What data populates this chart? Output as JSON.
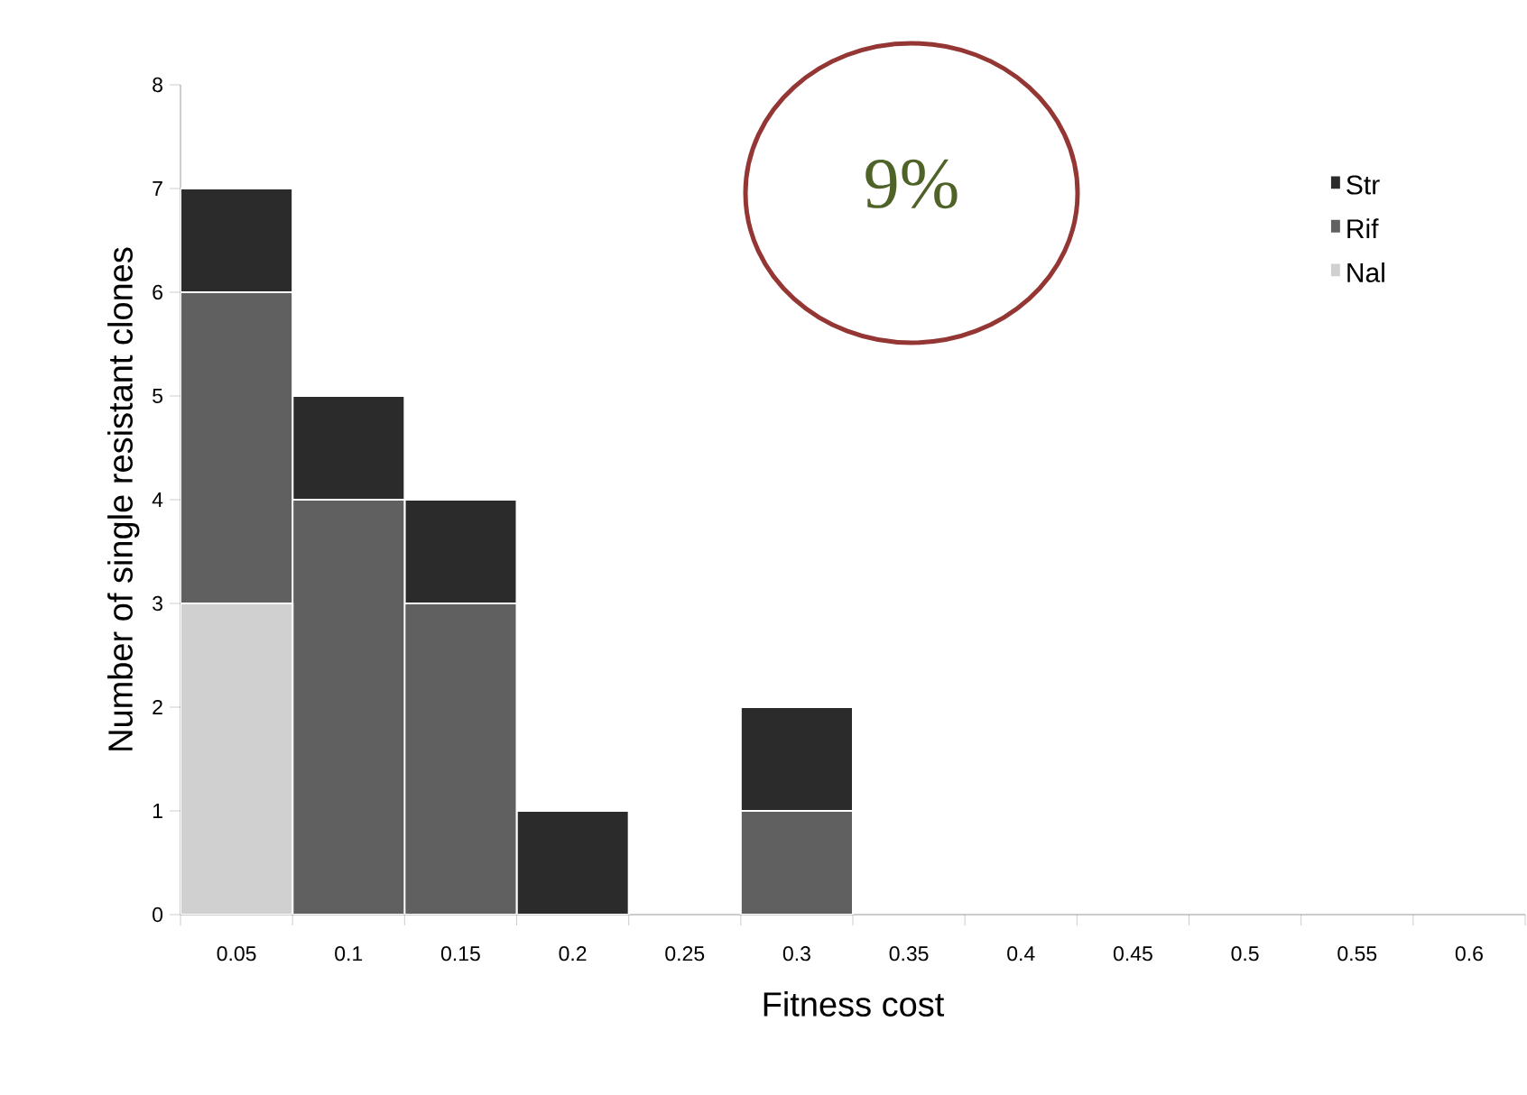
{
  "chart_data": {
    "type": "bar",
    "stacked": true,
    "xlabel": "Fitness cost",
    "ylabel": "Number of single resistant clones",
    "categories": [
      "0.05",
      "0.1",
      "0.15",
      "0.2",
      "0.25",
      "0.3",
      "0.35",
      "0.4",
      "0.45",
      "0.5",
      "0.55",
      "0.6"
    ],
    "series": [
      {
        "name": "Nal",
        "color": "#d0d0d0",
        "values": [
          3,
          0,
          0,
          0,
          0,
          0,
          0,
          0,
          0,
          0,
          0,
          0
        ]
      },
      {
        "name": "Rif",
        "color": "#606060",
        "values": [
          3,
          4,
          3,
          0,
          0,
          1,
          0,
          0,
          0,
          0,
          0,
          0
        ]
      },
      {
        "name": "Str",
        "color": "#2b2b2b",
        "values": [
          1,
          1,
          1,
          1,
          0,
          1,
          0,
          0,
          0,
          0,
          0,
          0
        ]
      }
    ],
    "ylim": [
      0,
      8
    ],
    "yticks": [
      0,
      1,
      2,
      3,
      4,
      5,
      6,
      7,
      8
    ],
    "grid": false,
    "legend": "top right",
    "annotations": [
      "9%"
    ]
  }
}
